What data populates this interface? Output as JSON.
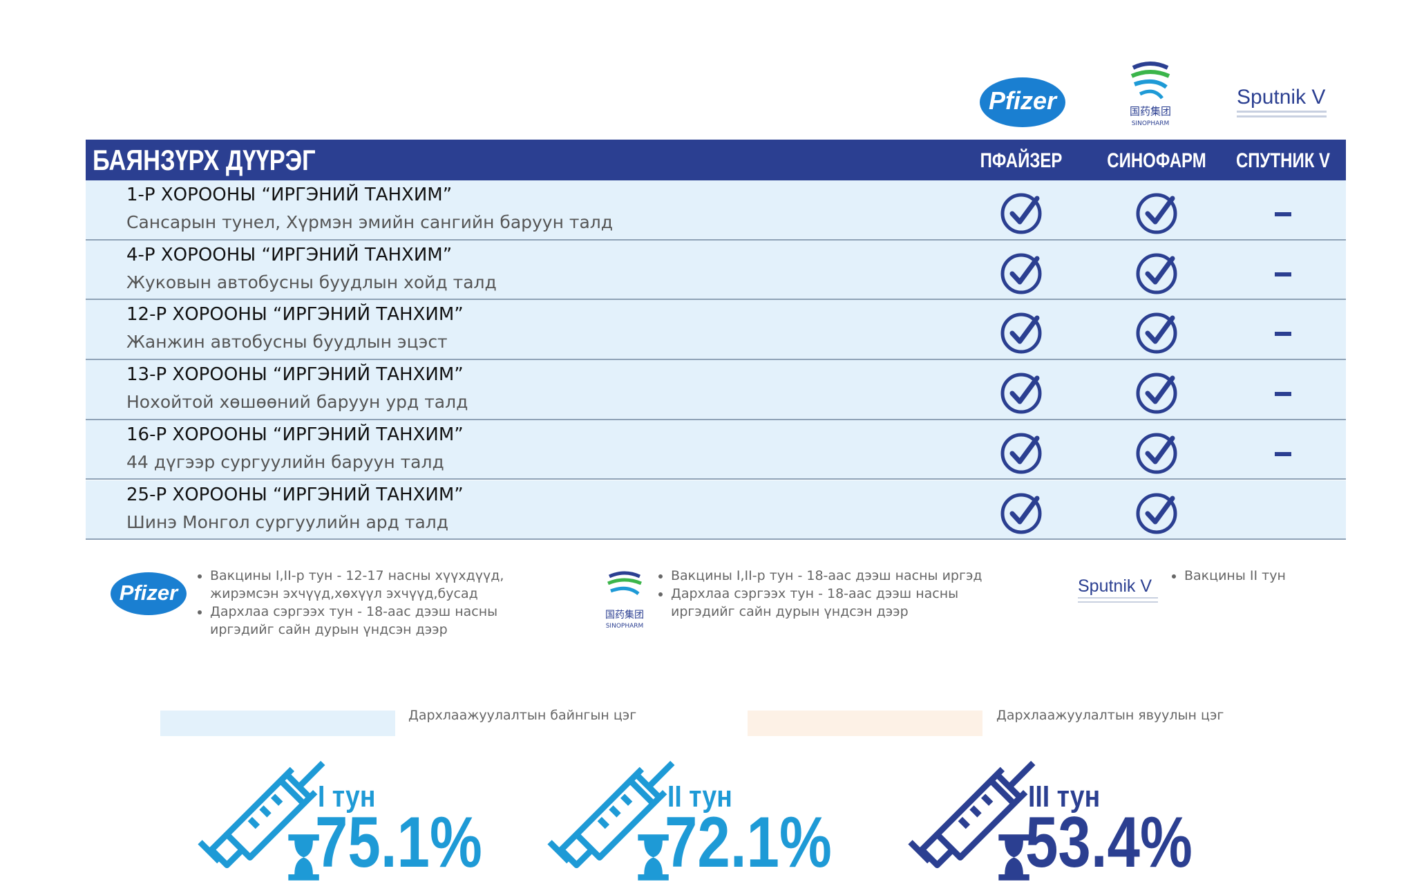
{
  "logos": {
    "pfizer": "Pfizer",
    "sinopharm_cn": "国药集团",
    "sinopharm": "SINOPHARM",
    "sputnik": "Sputnik V"
  },
  "table": {
    "title": "БАЯНЗҮРХ ДҮҮРЭГ",
    "columns": [
      "ПФАЙЗЕР",
      "СИНОФАРМ",
      "СПУТНИК V"
    ],
    "rows": [
      {
        "name": "1-Р ХОРООНЫ “ИРГЭНИЙ ТАНХИМ”",
        "location": "Сансарын тунел, Хүрмэн эмийн сангийн баруун талд",
        "vaccines": [
          true,
          true,
          false
        ]
      },
      {
        "name": "4-Р ХОРООНЫ “ИРГЭНИЙ ТАНХИМ”",
        "location": "Жуковын автобусны буудлын хойд талд",
        "vaccines": [
          true,
          true,
          false
        ]
      },
      {
        "name": "12-Р ХОРООНЫ “ИРГЭНИЙ ТАНХИМ”",
        "location": "Жанжин автобусны буудлын эцэст",
        "vaccines": [
          true,
          true,
          false
        ]
      },
      {
        "name": "13-Р ХОРООНЫ “ИРГЭНИЙ ТАНХИМ”",
        "location": "Нохойтой хөшөөний баруун урд талд",
        "vaccines": [
          true,
          true,
          false
        ]
      },
      {
        "name": "16-Р ХОРООНЫ “ИРГЭНИЙ ТАНХИМ”",
        "location": "44 дүгээр сургуулийн баруун талд",
        "vaccines": [
          true,
          true,
          false
        ]
      },
      {
        "name": "25-Р ХОРООНЫ “ИРГЭНИЙ ТАНХИМ”",
        "location": "Шинэ Монгол сургуулийн ард талд",
        "vaccines": [
          true,
          true,
          null
        ]
      }
    ]
  },
  "notes": {
    "pfizer": [
      "Вакцины I,II-р тун - 12-17 насны хүүхдүүд, жирэмсэн эхчүүд,хөхүүл эхчүүд,бусад",
      "Дархлаа сэргээх тун - 18-аас дээш насны иргэдийг сайн дурын үндсэн дээр"
    ],
    "sinopharm": [
      "Вакцины I,II-р тун - 18-аас дээш насны иргэд",
      "Дархлаа сэргээх тун - 18-аас дээш насны иргэдийг сайн дурын үндсэн дээр"
    ],
    "sputnik": [
      "Вакцины II тун"
    ]
  },
  "legend": [
    {
      "label": "Дархлаажуулалтын байнгын цэг",
      "color": "#e3f1fb"
    },
    {
      "label": "Дархлаажуулалтын явуулын цэг",
      "color": "#fdf1e6"
    }
  ],
  "stats": [
    {
      "label": "I тун",
      "value": "75.1%",
      "color": "#1e9ad6"
    },
    {
      "label": "II тун",
      "value": "72.1%",
      "color": "#1e9ad6"
    },
    {
      "label": "III тун",
      "value": "53.4%",
      "color": "#2b3f91"
    }
  ]
}
